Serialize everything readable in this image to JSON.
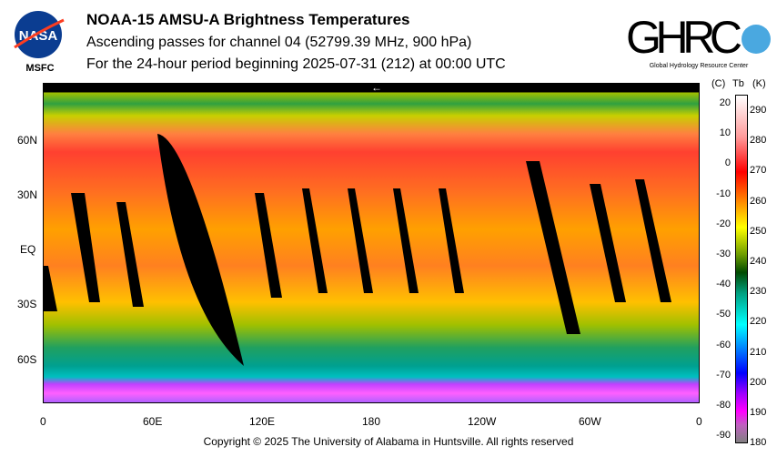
{
  "header": {
    "title": "NOAA-15 AMSU-A Brightness Temperatures",
    "subtitle": "Ascending passes for channel 04 (52799.39 MHz, 900 hPa)",
    "period": "For the 24-hour period beginning 2025-07-31 (212) at 00:00 UTC",
    "left_logo": {
      "name": "NASA",
      "caption": "MSFC"
    },
    "right_logo": {
      "name": "GHRC",
      "caption": "Global Hydrology Resource Center"
    }
  },
  "map": {
    "lat_labels": [
      "60N",
      "30N",
      "EQ",
      "30S",
      "60S"
    ],
    "lon_labels": [
      "0",
      "60E",
      "120E",
      "180",
      "120W",
      "60W",
      "0"
    ],
    "marker": "←"
  },
  "colorbar": {
    "header_c": "(C)",
    "header_tb": "Tb",
    "header_k": "(K)",
    "celsius": [
      "20",
      "10",
      "0",
      "-10",
      "-20",
      "-30",
      "-40",
      "-50",
      "-60",
      "-70",
      "-80",
      "-90"
    ],
    "kelvin": [
      "290",
      "280",
      "270",
      "260",
      "250",
      "240",
      "230",
      "220",
      "210",
      "200",
      "190",
      "180"
    ],
    "colors": [
      "#ffffff",
      "#ff9a9a",
      "#ff0000",
      "#ff8000",
      "#ffff00",
      "#6a9a00",
      "#004a00",
      "#00a080",
      "#00ffff",
      "#0080ff",
      "#0000ff",
      "#a000ff",
      "#ff00ff",
      "#c060c0",
      "#808080"
    ]
  },
  "footer": {
    "copyright": "Copyright © 2025 The University of Alabama in Huntsville.  All rights reserved"
  }
}
